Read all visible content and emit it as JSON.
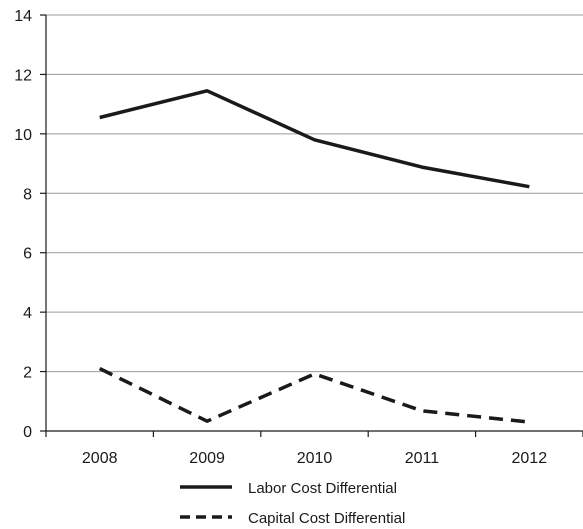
{
  "chart_data": {
    "type": "line",
    "categories": [
      "2008",
      "2009",
      "2010",
      "2011",
      "2012"
    ],
    "series": [
      {
        "name": "Labor Cost Differential",
        "values": [
          10.55,
          11.45,
          9.8,
          8.88,
          8.22
        ],
        "style": "solid",
        "color": "#1a1a1a"
      },
      {
        "name": "Capital Cost Differential",
        "values": [
          2.1,
          0.33,
          1.92,
          0.68,
          0.3
        ],
        "style": "dashed",
        "color": "#1a1a1a"
      }
    ],
    "ylim": [
      0,
      14
    ],
    "yticks": [
      "0",
      "2",
      "4",
      "6",
      "8",
      "10",
      "12",
      "14"
    ],
    "grid": true,
    "legend_position": "bottom",
    "title": "",
    "xlabel": "",
    "ylabel": ""
  }
}
